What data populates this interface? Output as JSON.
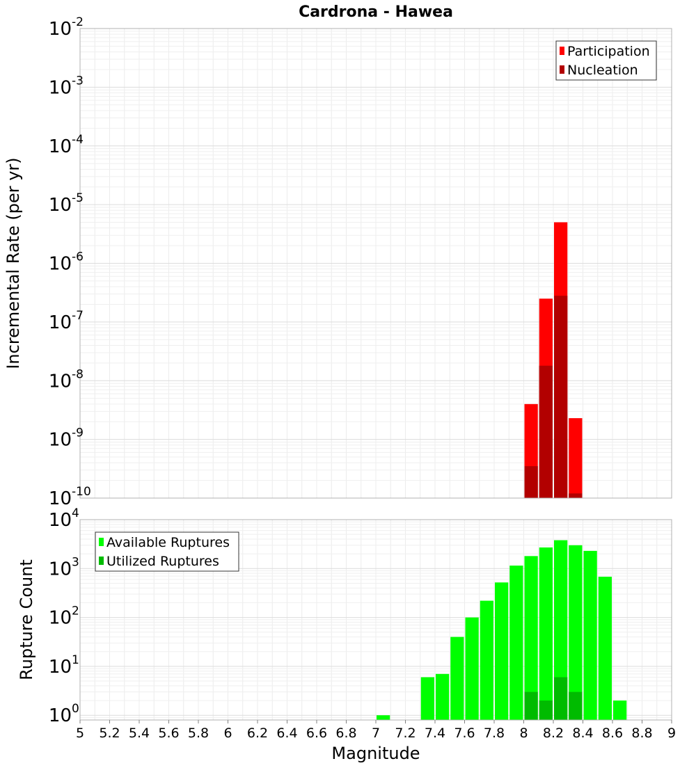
{
  "chart_data": [
    {
      "type": "bar",
      "title": "Cardrona - Hawea",
      "xlabel": "Magnitude",
      "ylabel": "Incremental Rate (per yr)",
      "yscale": "log",
      "xlim": [
        5,
        9
      ],
      "ylim": [
        1e-10,
        0.01
      ],
      "ytick_exponents": [
        -10,
        -9,
        -8,
        -7,
        -6,
        -5,
        -4,
        -3,
        -2
      ],
      "grid": true,
      "legend_position": "top-right",
      "legend": [
        "Participation",
        "Nucleation"
      ],
      "bin_width": 0.1,
      "series": [
        {
          "name": "Participation",
          "color": "#ff0000",
          "x": [
            8.05,
            8.15,
            8.25,
            8.35
          ],
          "values": [
            4e-09,
            2.5e-07,
            5e-06,
            2.3e-09
          ]
        },
        {
          "name": "Nucleation",
          "color": "#b20000",
          "x": [
            8.05,
            8.15,
            8.25,
            8.35
          ],
          "values": [
            3.5e-10,
            1.8e-08,
            2.8e-07,
            1.2e-10
          ]
        }
      ]
    },
    {
      "type": "bar",
      "xlabel": "Magnitude",
      "ylabel": "Rupture Count",
      "yscale": "log",
      "xlim": [
        5,
        9
      ],
      "ylim": [
        0.8,
        10000
      ],
      "ytick_exponents": [
        0,
        1,
        2,
        3,
        4
      ],
      "xticks": [
        "5",
        "5.2",
        "5.4",
        "5.6",
        "5.8",
        "6",
        "6.2",
        "6.4",
        "6.6",
        "6.8",
        "7",
        "7.2",
        "7.4",
        "7.6",
        "7.8",
        "8",
        "8.2",
        "8.4",
        "8.6",
        "8.8",
        "9"
      ],
      "grid": true,
      "legend_position": "top-left",
      "legend": [
        "Available Ruptures",
        "Utilized Ruptures"
      ],
      "bin_width": 0.1,
      "series": [
        {
          "name": "Available Ruptures",
          "color": "#00ff00",
          "x": [
            7.05,
            7.35,
            7.45,
            7.55,
            7.65,
            7.75,
            7.85,
            7.95,
            8.05,
            8.15,
            8.25,
            8.35,
            8.45,
            8.55,
            8.65
          ],
          "values": [
            1,
            6,
            7,
            40,
            100,
            220,
            520,
            1150,
            1800,
            2700,
            3800,
            3000,
            2300,
            680,
            2
          ]
        },
        {
          "name": "Utilized Ruptures",
          "color": "#00bb00",
          "x": [
            8.05,
            8.15,
            8.25,
            8.35
          ],
          "values": [
            3,
            2,
            6,
            3
          ]
        }
      ]
    }
  ]
}
